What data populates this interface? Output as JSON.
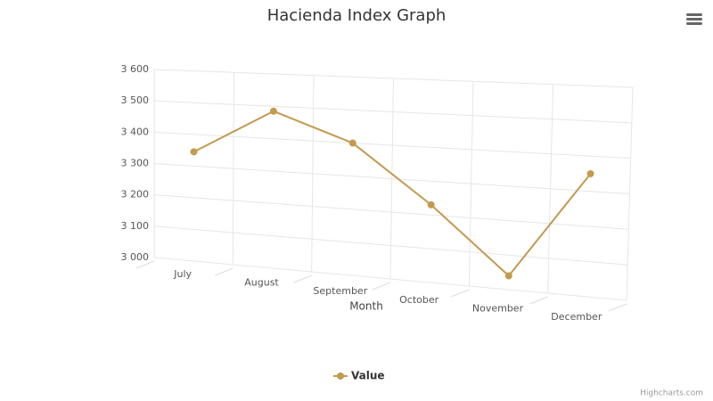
{
  "chart_data": {
    "type": "line",
    "title": "Hacienda Index Graph",
    "x_label": "Month",
    "categories": [
      "July",
      "August",
      "September",
      "October",
      "November",
      "December"
    ],
    "series": [
      {
        "name": "Value",
        "color": "#c49a50",
        "values": [
          3345,
          3485,
          3400,
          3230,
          3040,
          3350
        ]
      }
    ],
    "ylim": [
      3000,
      3600
    ],
    "yticks": [
      {
        "value": 3000,
        "label": "3 000"
      },
      {
        "value": 3100,
        "label": "3 100"
      },
      {
        "value": 3200,
        "label": "3 200"
      },
      {
        "value": 3300,
        "label": "3 300"
      },
      {
        "value": 3400,
        "label": "3 400"
      },
      {
        "value": 3500,
        "label": "3 500"
      },
      {
        "value": 3600,
        "label": "3 600"
      }
    ],
    "grid": true,
    "legend": "bottom",
    "credits": "Highcharts.com"
  }
}
